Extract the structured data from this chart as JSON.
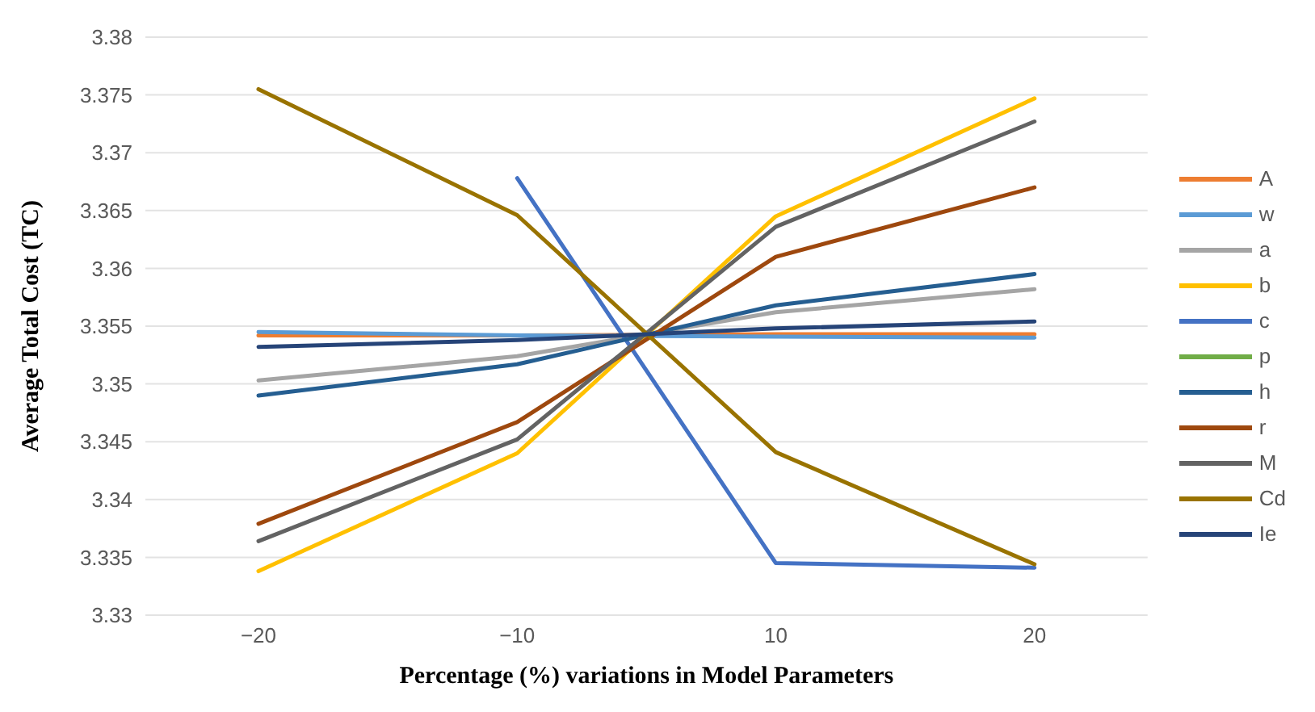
{
  "chart_data": {
    "type": "line",
    "xlabel": "Percentage (%) variations in Model Parameters",
    "ylabel": "Average Total Cost (TC)",
    "categories": [
      "−20",
      "−10",
      "10",
      "20"
    ],
    "ylim": [
      3.33,
      3.38
    ],
    "yticks": [
      3.33,
      3.335,
      3.34,
      3.345,
      3.35,
      3.355,
      3.36,
      3.365,
      3.37,
      3.375,
      3.38
    ],
    "grid": "y",
    "legend": "right",
    "marker": "none",
    "series": [
      {
        "name": "A",
        "color": "#ed7d31",
        "values": [
          3.3542,
          3.3542,
          3.3543,
          3.3543
        ]
      },
      {
        "name": "w",
        "color": "#5b9bd5",
        "values": [
          3.3545,
          3.3542,
          3.3541,
          3.354
        ]
      },
      {
        "name": "a",
        "color": "#a5a5a5",
        "values": [
          3.3503,
          3.3524,
          3.3562,
          3.3582
        ]
      },
      {
        "name": "b",
        "color": "#ffc000",
        "values": [
          3.3338,
          3.344,
          3.3645,
          3.3747
        ]
      },
      {
        "name": "c",
        "color": "#4472c4",
        "values": [
          null,
          3.3678,
          3.3345,
          3.3341
        ]
      },
      {
        "name": "p",
        "color": "#70ad47",
        "values": [
          null,
          null,
          null,
          null
        ]
      },
      {
        "name": "h",
        "color": "#255e91",
        "values": [
          3.349,
          3.3517,
          3.3568,
          3.3595
        ]
      },
      {
        "name": "r",
        "color": "#9e480e",
        "values": [
          3.3379,
          3.3467,
          3.361,
          3.367
        ]
      },
      {
        "name": "M",
        "color": "#636363",
        "values": [
          3.3364,
          3.3452,
          3.3636,
          3.3727
        ]
      },
      {
        "name": "Cd",
        "color": "#997300",
        "values": [
          3.3755,
          3.3646,
          3.3441,
          3.3344
        ]
      },
      {
        "name": "Ie",
        "color": "#264478",
        "values": [
          3.3532,
          3.3538,
          3.3548,
          3.3554
        ]
      }
    ]
  }
}
